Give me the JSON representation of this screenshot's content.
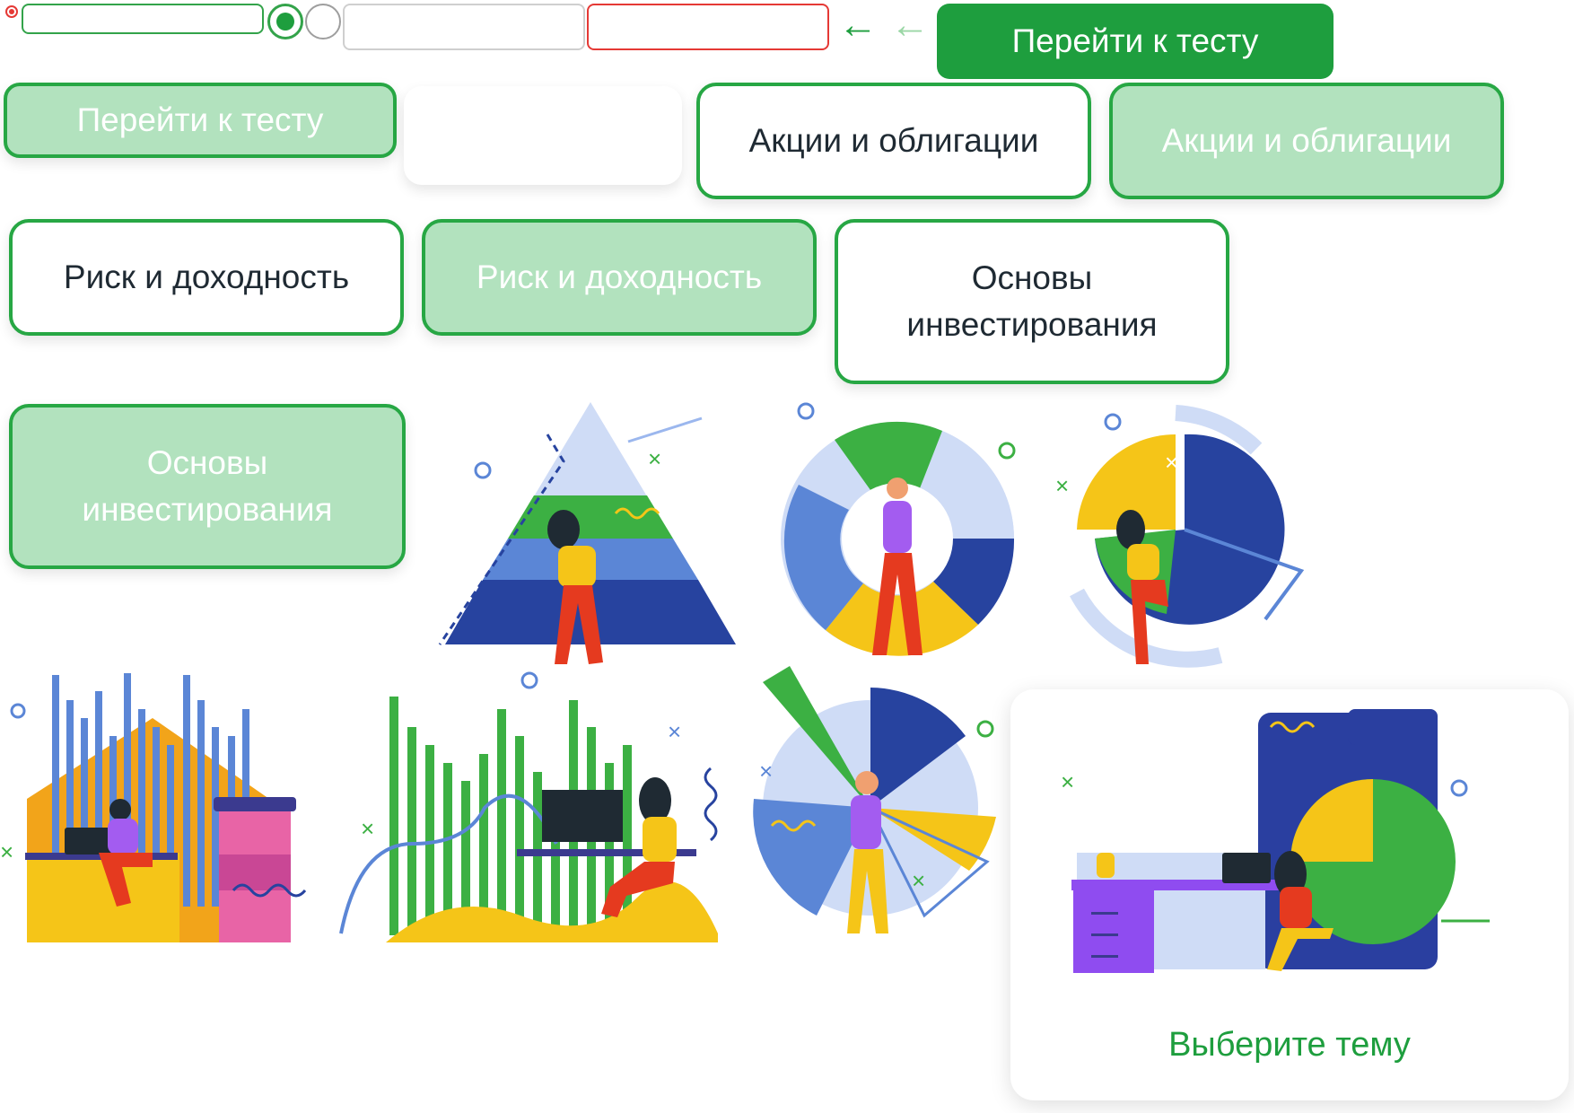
{
  "colors": {
    "accent": "#1e9e3e",
    "accent_pale": "#b2e2be",
    "error": "#e53935",
    "dark_text": "#1f2a33"
  },
  "top_bar": {
    "primary_button": "Перейти к тесту",
    "back_arrow_icon": "arrow-left-icon",
    "back_arrow_light_icon": "arrow-left-light-icon"
  },
  "buttons": {
    "go_to_test_pale": "Перейти к тесту",
    "stocks_white": "Акции и облигации",
    "stocks_pale": "Акции и облигации",
    "risk_white": "Риск и доходность",
    "risk_pale": "Риск и доходность",
    "basics_white": "Основы инвестирования",
    "basics_pale": "Основы инвестирования"
  },
  "choose_card": {
    "label": "Выберите тему"
  }
}
